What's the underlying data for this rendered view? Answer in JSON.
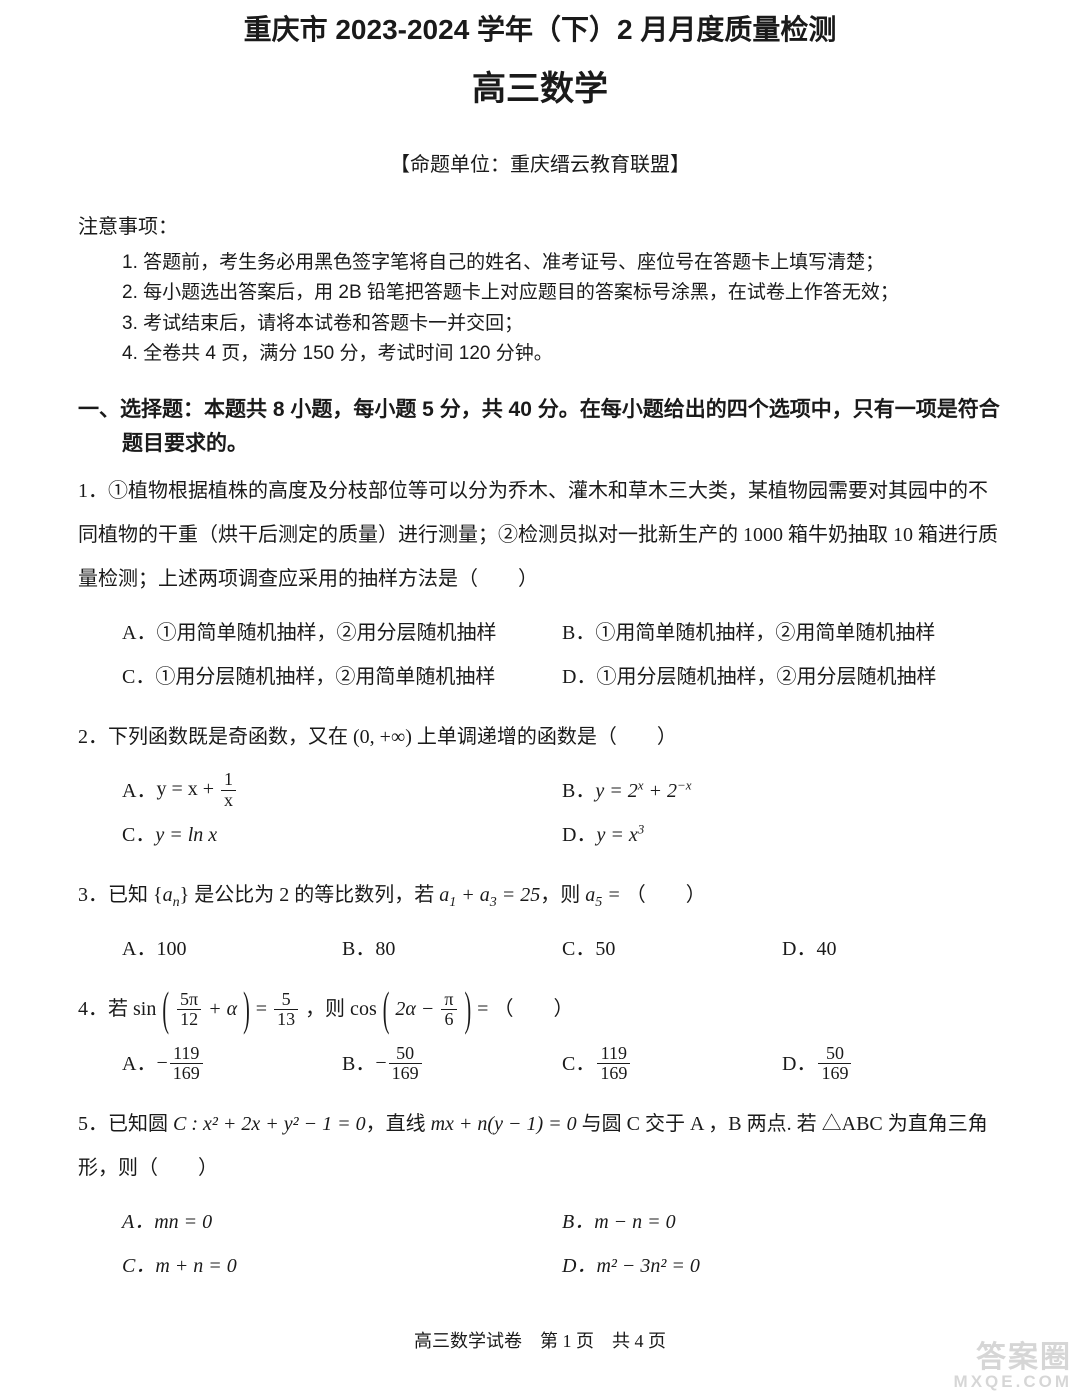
{
  "title_line1": "重庆市 2023-2024 学年（下）2 月月度质量检测",
  "title_line2": "高三数学",
  "source": "【命题单位：重庆缙云教育联盟】",
  "notice_title": "注意事项：",
  "notices": [
    "1. 答题前，考生务必用黑色签字笔将自己的姓名、准考证号、座位号在答题卡上填写清楚；",
    "2. 每小题选出答案后，用 2B 铅笔把答题卡上对应题目的答案标号涂黑，在试卷上作答无效；",
    "3. 考试结束后，请将本试卷和答题卡一并交回；",
    "4. 全卷共 4 页，满分 150 分，考试时间 120 分钟。"
  ],
  "section1_title": "一、选择题：本题共 8 小题，每小题 5 分，共 40 分。在每小题给出的四个选项中，只有一项是符合题目要求的。",
  "q1": {
    "text": "1．①植物根据植株的高度及分枝部位等可以分为乔木、灌木和草木三大类，某植物园需要对其园中的不同植物的干重（烘干后测定的质量）进行测量；②检测员拟对一批新生产的 1000 箱牛奶抽取 10 箱进行质量检测；上述两项调查应采用的抽样方法是（　　）",
    "A": "A．①用简单随机抽样，②用分层随机抽样",
    "B": "B．①用简单随机抽样，②用简单随机抽样",
    "C": "C．①用分层随机抽样，②用简单随机抽样",
    "D": "D．①用分层随机抽样，②用分层随机抽样"
  },
  "q2": {
    "text_pre": "2．下列函数既是奇函数，又在 ",
    "text_mid": "(0, +∞)",
    "text_post": " 上单调递增的函数是（　　）",
    "A_label": "A．",
    "B_label": "B．",
    "C_label": "C．",
    "D_label": "D．"
  },
  "q3": {
    "text_pre": "3．已知 {",
    "an": "aₙ",
    "text_mid1": "} 是公比为 2 的等比数列，若 ",
    "eq1": "a₁ + a₃ = 25",
    "text_mid2": "，则 ",
    "eq2": "a₅ =",
    "text_post": "（　　）",
    "A": "A．100",
    "B": "B．80",
    "C": "C．50",
    "D": "D．40"
  },
  "q4": {
    "text_pre": "4．若 sin",
    "a_num": "5π",
    "a_den": "12",
    "text_mid1": " + α",
    "eq_sign": " = ",
    "b_num": "5",
    "b_den": "13",
    "text_mid2": "，则 cos",
    "c_inner_pre": "2α − ",
    "c_num": "π",
    "c_den": "6",
    "text_post": " = （　　）",
    "A_label": "A．",
    "A_num": "119",
    "A_den": "169",
    "B_label": "B．",
    "B_num": "50",
    "B_den": "169",
    "C_label": "C．",
    "C_num": "119",
    "C_den": "169",
    "D_label": "D．",
    "D_num": "50",
    "D_den": "169"
  },
  "q5": {
    "text_pre": "5．已知圆 ",
    "circle": "C : x² + 2x + y² − 1 = 0",
    "text_mid1": "，直线 ",
    "line": "mx + n(y − 1) = 0",
    "text_mid2": " 与圆 C 交于 A ，B 两点. 若 △ABC 为直角三角形，则（　　）",
    "A": "A．mn = 0",
    "B": "B．m − n = 0",
    "C": "C．m + n = 0",
    "D": "D．m² − 3n² = 0"
  },
  "footer": "高三数学试卷　第 1 页　共 4 页",
  "watermark1": "答案圈",
  "watermark2": "MXQE.COM"
}
